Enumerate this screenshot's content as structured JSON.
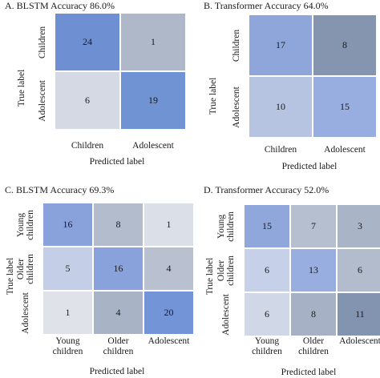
{
  "chart_data": [
    {
      "type": "heatmap",
      "title": "A. BLSTM Accuracy 86.0%",
      "xlabel": "Predicted label",
      "ylabel": "True label",
      "rows": [
        "Children",
        "Adolescent"
      ],
      "cols": [
        "Children",
        "Adolescent"
      ],
      "values": [
        [
          24,
          1
        ],
        [
          6,
          19
        ]
      ],
      "colors": [
        [
          "#6f8fd3",
          "#aeb8c9"
        ],
        [
          "#d4d9e3",
          "#7093d4"
        ]
      ]
    },
    {
      "type": "heatmap",
      "title": "B. Transformer Accuracy 64.0%",
      "xlabel": "Predicted label",
      "ylabel": "True label",
      "rows": [
        "Children",
        "Adolescent"
      ],
      "cols": [
        "Children",
        "Adolescent"
      ],
      "values": [
        [
          17,
          8
        ],
        [
          10,
          15
        ]
      ],
      "colors": [
        [
          "#8fa6da",
          "#8595b0"
        ],
        [
          "#b7c4e1",
          "#98ade0"
        ]
      ]
    },
    {
      "type": "heatmap",
      "title": "C. BLSTM Accuracy 69.3%",
      "xlabel": "Predicted label",
      "ylabel": "True label",
      "rows": [
        "Young children",
        "Older children",
        "Adolescent"
      ],
      "rows_display": [
        [
          "Young",
          "children"
        ],
        [
          "Older",
          "children"
        ],
        [
          "Adolescent"
        ]
      ],
      "cols_display": [
        [
          "Young",
          "children"
        ],
        [
          "Older",
          "children"
        ],
        [
          "Adolescent"
        ]
      ],
      "values": [
        [
          16,
          8,
          1
        ],
        [
          5,
          16,
          4
        ],
        [
          1,
          4,
          20
        ]
      ],
      "colors": [
        [
          "#8aa2dc",
          "#b2bccd",
          "#dbdfe7"
        ],
        [
          "#c4cfe7",
          "#8aa2dc",
          "#b9c1d0"
        ],
        [
          "#dfe2e9",
          "#a9b3c6",
          "#7394d6"
        ]
      ]
    },
    {
      "type": "heatmap",
      "title": "D. Transformer Accuracy 52.0%",
      "xlabel": "Predicted label",
      "ylabel": "True label",
      "rows": [
        "Young children",
        "Older children",
        "Adolescent"
      ],
      "rows_display": [
        [
          "Young",
          "children"
        ],
        [
          "Older",
          "children"
        ],
        [
          "Adolescent"
        ]
      ],
      "cols_display": [
        [
          "Young",
          "children"
        ],
        [
          "Older",
          "children"
        ],
        [
          "Adolescent"
        ]
      ],
      "values": [
        [
          15,
          7,
          3
        ],
        [
          6,
          13,
          6
        ],
        [
          6,
          8,
          11
        ]
      ],
      "colors": [
        [
          "#90a7dc",
          "#b5bfcf",
          "#aab4c7"
        ],
        [
          "#c6d0e8",
          "#99aee0",
          "#b2bccd"
        ],
        [
          "#d0d7e6",
          "#a6b1c6",
          "#8394b1"
        ]
      ]
    }
  ]
}
